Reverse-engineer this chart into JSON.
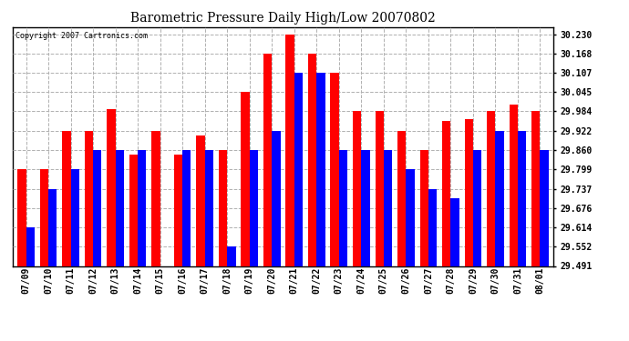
{
  "title": "Barometric Pressure Daily High/Low 20070802",
  "copyright": "Copyright 2007 Cartronics.com",
  "dates": [
    "07/09",
    "07/10",
    "07/11",
    "07/12",
    "07/13",
    "07/14",
    "07/15",
    "07/16",
    "07/17",
    "07/18",
    "07/19",
    "07/20",
    "07/21",
    "07/22",
    "07/23",
    "07/24",
    "07/25",
    "07/26",
    "07/27",
    "07/28",
    "07/29",
    "07/30",
    "07/31",
    "08/01"
  ],
  "highs": [
    29.8,
    29.8,
    29.922,
    29.922,
    29.99,
    29.845,
    29.922,
    29.845,
    29.907,
    29.86,
    30.045,
    30.168,
    30.23,
    30.168,
    30.107,
    29.984,
    29.984,
    29.922,
    29.86,
    29.952,
    29.96,
    29.984,
    30.007,
    29.984
  ],
  "lows": [
    29.614,
    29.737,
    29.799,
    29.86,
    29.86,
    29.86,
    29.491,
    29.86,
    29.86,
    29.552,
    29.86,
    29.922,
    30.107,
    30.107,
    29.86,
    29.86,
    29.86,
    29.799,
    29.737,
    29.706,
    29.86,
    29.922,
    29.922,
    29.86
  ],
  "high_color": "#ff0000",
  "low_color": "#0000ff",
  "bg_color": "#ffffff",
  "grid_color": "#b0b0b0",
  "yticks": [
    29.491,
    29.552,
    29.614,
    29.676,
    29.737,
    29.799,
    29.86,
    29.922,
    29.984,
    30.045,
    30.107,
    30.168,
    30.23
  ],
  "ymin": 29.491,
  "ymax": 30.252,
  "bar_width": 0.38,
  "figwidth": 6.9,
  "figheight": 3.75,
  "dpi": 100
}
